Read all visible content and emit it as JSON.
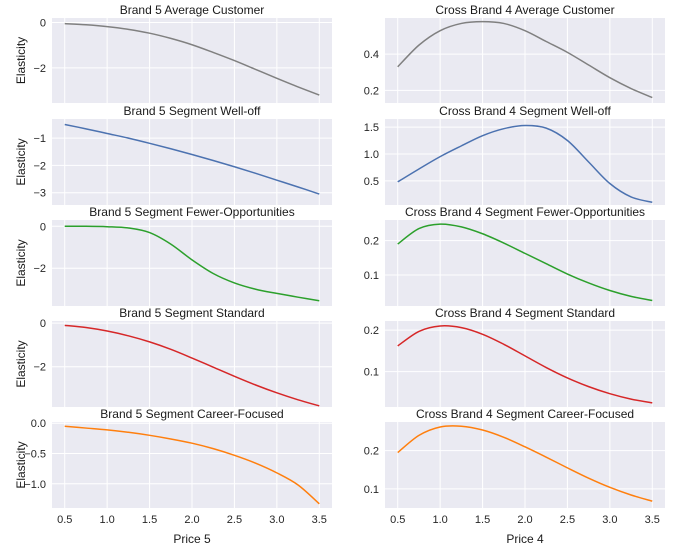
{
  "chart_data": [
    {
      "type": "line",
      "title": "Brand 5 Average Customer",
      "xlabel": "",
      "ylabel": "Elasticity",
      "xlim": [
        0.35,
        3.65
      ],
      "ylim": [
        -3.55,
        0.2
      ],
      "yticks": [
        0,
        -2
      ],
      "xticks": [],
      "color": "#808080",
      "x": [
        0.5,
        0.75,
        1.0,
        1.25,
        1.5,
        1.75,
        2.0,
        2.25,
        2.5,
        2.75,
        3.0,
        3.25,
        3.5
      ],
      "values": [
        -0.05,
        -0.1,
        -0.18,
        -0.3,
        -0.47,
        -0.7,
        -0.98,
        -1.32,
        -1.68,
        -2.07,
        -2.46,
        -2.84,
        -3.2
      ]
    },
    {
      "type": "line",
      "title": "Cross Brand 4 Average Customer",
      "xlabel": "",
      "ylabel": "",
      "xlim": [
        0.35,
        3.65
      ],
      "ylim": [
        0.13,
        0.6
      ],
      "yticks": [
        0.4,
        0.2
      ],
      "xticks": [],
      "color": "#808080",
      "x": [
        0.5,
        0.75,
        1.0,
        1.25,
        1.5,
        1.75,
        2.0,
        2.25,
        2.5,
        2.75,
        3.0,
        3.25,
        3.5
      ],
      "values": [
        0.33,
        0.45,
        0.53,
        0.57,
        0.58,
        0.57,
        0.53,
        0.47,
        0.41,
        0.34,
        0.27,
        0.21,
        0.16
      ]
    },
    {
      "type": "line",
      "title": "Brand 5 Segment Well-off",
      "xlabel": "",
      "ylabel": "Elasticity",
      "xlim": [
        0.35,
        3.65
      ],
      "ylim": [
        -3.45,
        -0.3
      ],
      "yticks": [
        -1,
        -2,
        -3
      ],
      "xticks": [],
      "color": "#4c72b0",
      "x": [
        0.5,
        0.75,
        1.0,
        1.25,
        1.5,
        1.75,
        2.0,
        2.25,
        2.5,
        2.75,
        3.0,
        3.25,
        3.5
      ],
      "values": [
        -0.5,
        -0.66,
        -0.83,
        -1.0,
        -1.19,
        -1.39,
        -1.6,
        -1.82,
        -2.05,
        -2.29,
        -2.54,
        -2.79,
        -3.05
      ]
    },
    {
      "type": "line",
      "title": "Cross Brand 4 Segment Well-off",
      "xlabel": "",
      "ylabel": "",
      "xlim": [
        0.35,
        3.65
      ],
      "ylim": [
        0.05,
        1.65
      ],
      "yticks": [
        1.5,
        1.0,
        0.5
      ],
      "xticks": [],
      "color": "#4c72b0",
      "x": [
        0.5,
        0.75,
        1.0,
        1.25,
        1.5,
        1.75,
        2.0,
        2.25,
        2.5,
        2.75,
        3.0,
        3.25,
        3.5
      ],
      "values": [
        0.48,
        0.72,
        0.95,
        1.15,
        1.34,
        1.47,
        1.53,
        1.48,
        1.25,
        0.85,
        0.45,
        0.2,
        0.1
      ]
    },
    {
      "type": "line",
      "title": "Brand 5 Segment Fewer-Opportunities",
      "xlabel": "",
      "ylabel": "Elasticity",
      "xlim": [
        0.35,
        3.65
      ],
      "ylim": [
        -3.8,
        0.3
      ],
      "yticks": [
        0,
        -2
      ],
      "xticks": [],
      "color": "#2ca02c",
      "x": [
        0.5,
        0.75,
        1.0,
        1.25,
        1.5,
        1.75,
        2.0,
        2.25,
        2.5,
        2.75,
        3.0,
        3.25,
        3.5
      ],
      "values": [
        0.0,
        0.0,
        -0.02,
        -0.08,
        -0.3,
        -0.85,
        -1.6,
        -2.25,
        -2.7,
        -3.0,
        -3.2,
        -3.38,
        -3.55
      ]
    },
    {
      "type": "line",
      "title": "Cross Brand 4 Segment Fewer-Opportunities",
      "xlabel": "",
      "ylabel": "",
      "xlim": [
        0.35,
        3.65
      ],
      "ylim": [
        0.01,
        0.26
      ],
      "yticks": [
        0.2,
        0.1
      ],
      "xticks": [],
      "color": "#2ca02c",
      "x": [
        0.5,
        0.75,
        1.0,
        1.25,
        1.5,
        1.75,
        2.0,
        2.25,
        2.5,
        2.75,
        3.0,
        3.25,
        3.5
      ],
      "values": [
        0.19,
        0.235,
        0.248,
        0.24,
        0.22,
        0.193,
        0.163,
        0.133,
        0.103,
        0.077,
        0.055,
        0.038,
        0.026
      ]
    },
    {
      "type": "line",
      "title": "Brand 5 Segment Standard",
      "xlabel": "",
      "ylabel": "Elasticity",
      "xlim": [
        0.35,
        3.65
      ],
      "ylim": [
        -3.85,
        0.1
      ],
      "yticks": [
        0,
        -2
      ],
      "xticks": [],
      "color": "#d62728",
      "x": [
        0.5,
        0.75,
        1.0,
        1.25,
        1.5,
        1.75,
        2.0,
        2.25,
        2.5,
        2.75,
        3.0,
        3.25,
        3.5
      ],
      "values": [
        -0.1,
        -0.2,
        -0.36,
        -0.58,
        -0.86,
        -1.2,
        -1.6,
        -2.02,
        -2.44,
        -2.84,
        -3.2,
        -3.52,
        -3.8
      ]
    },
    {
      "type": "line",
      "title": "Cross Brand 4 Segment Standard",
      "xlabel": "",
      "ylabel": "",
      "xlim": [
        0.35,
        3.65
      ],
      "ylim": [
        0.015,
        0.222
      ],
      "yticks": [
        0.2,
        0.1
      ],
      "xticks": [],
      "color": "#d62728",
      "x": [
        0.5,
        0.75,
        1.0,
        1.25,
        1.5,
        1.75,
        2.0,
        2.25,
        2.5,
        2.75,
        3.0,
        3.25,
        3.5
      ],
      "values": [
        0.162,
        0.197,
        0.21,
        0.206,
        0.19,
        0.166,
        0.138,
        0.11,
        0.085,
        0.064,
        0.047,
        0.034,
        0.025
      ]
    },
    {
      "type": "line",
      "title": "Brand 5 Segment Career-Focused",
      "xlabel": "Price 5",
      "ylabel": "Elasticity",
      "xlim": [
        0.35,
        3.65
      ],
      "ylim": [
        -1.4,
        0.02
      ],
      "yticks": [
        0.0,
        -0.5,
        -1.0
      ],
      "xticks": [
        0.5,
        1.0,
        1.5,
        2.0,
        2.5,
        3.0,
        3.5
      ],
      "color": "#ff7f0e",
      "x": [
        0.5,
        0.75,
        1.0,
        1.25,
        1.5,
        1.75,
        2.0,
        2.25,
        2.5,
        2.75,
        3.0,
        3.25,
        3.5
      ],
      "values": [
        -0.05,
        -0.08,
        -0.11,
        -0.15,
        -0.2,
        -0.26,
        -0.33,
        -0.42,
        -0.53,
        -0.66,
        -0.82,
        -1.02,
        -1.33
      ]
    },
    {
      "type": "line",
      "title": "Cross Brand 4 Segment Career-Focused",
      "xlabel": "Price 4",
      "ylabel": "",
      "xlim": [
        0.35,
        3.65
      ],
      "ylim": [
        0.05,
        0.275
      ],
      "yticks": [
        0.2,
        0.1
      ],
      "xticks": [
        0.5,
        1.0,
        1.5,
        2.0,
        2.5,
        3.0,
        3.5
      ],
      "color": "#ff7f0e",
      "x": [
        0.5,
        0.75,
        1.0,
        1.25,
        1.5,
        1.75,
        2.0,
        2.25,
        2.5,
        2.75,
        3.0,
        3.25,
        3.5
      ],
      "values": [
        0.195,
        0.24,
        0.262,
        0.264,
        0.254,
        0.235,
        0.21,
        0.183,
        0.155,
        0.128,
        0.104,
        0.084,
        0.068
      ]
    }
  ],
  "tick_labels": {
    "p0": [
      "0",
      "−2"
    ],
    "p1": [
      "0.4",
      "0.2"
    ],
    "p2": [
      "−1",
      "−2",
      "−3"
    ],
    "p3": [
      "1.5",
      "1.0",
      "0.5"
    ],
    "p4": [
      "0",
      "−2"
    ],
    "p5": [
      "0.2",
      "0.1"
    ],
    "p6": [
      "0",
      "−2"
    ],
    "p7": [
      "0.2",
      "0.1"
    ],
    "p8": [
      "0.0",
      "−0.5",
      "−1.0"
    ],
    "p9": [
      "0.2",
      "0.1"
    ],
    "x": [
      "0.5",
      "1.0",
      "1.5",
      "2.0",
      "2.5",
      "3.0",
      "3.5"
    ]
  },
  "colors": {
    "background": "#eaeaf2",
    "grid": "#ffffff"
  }
}
